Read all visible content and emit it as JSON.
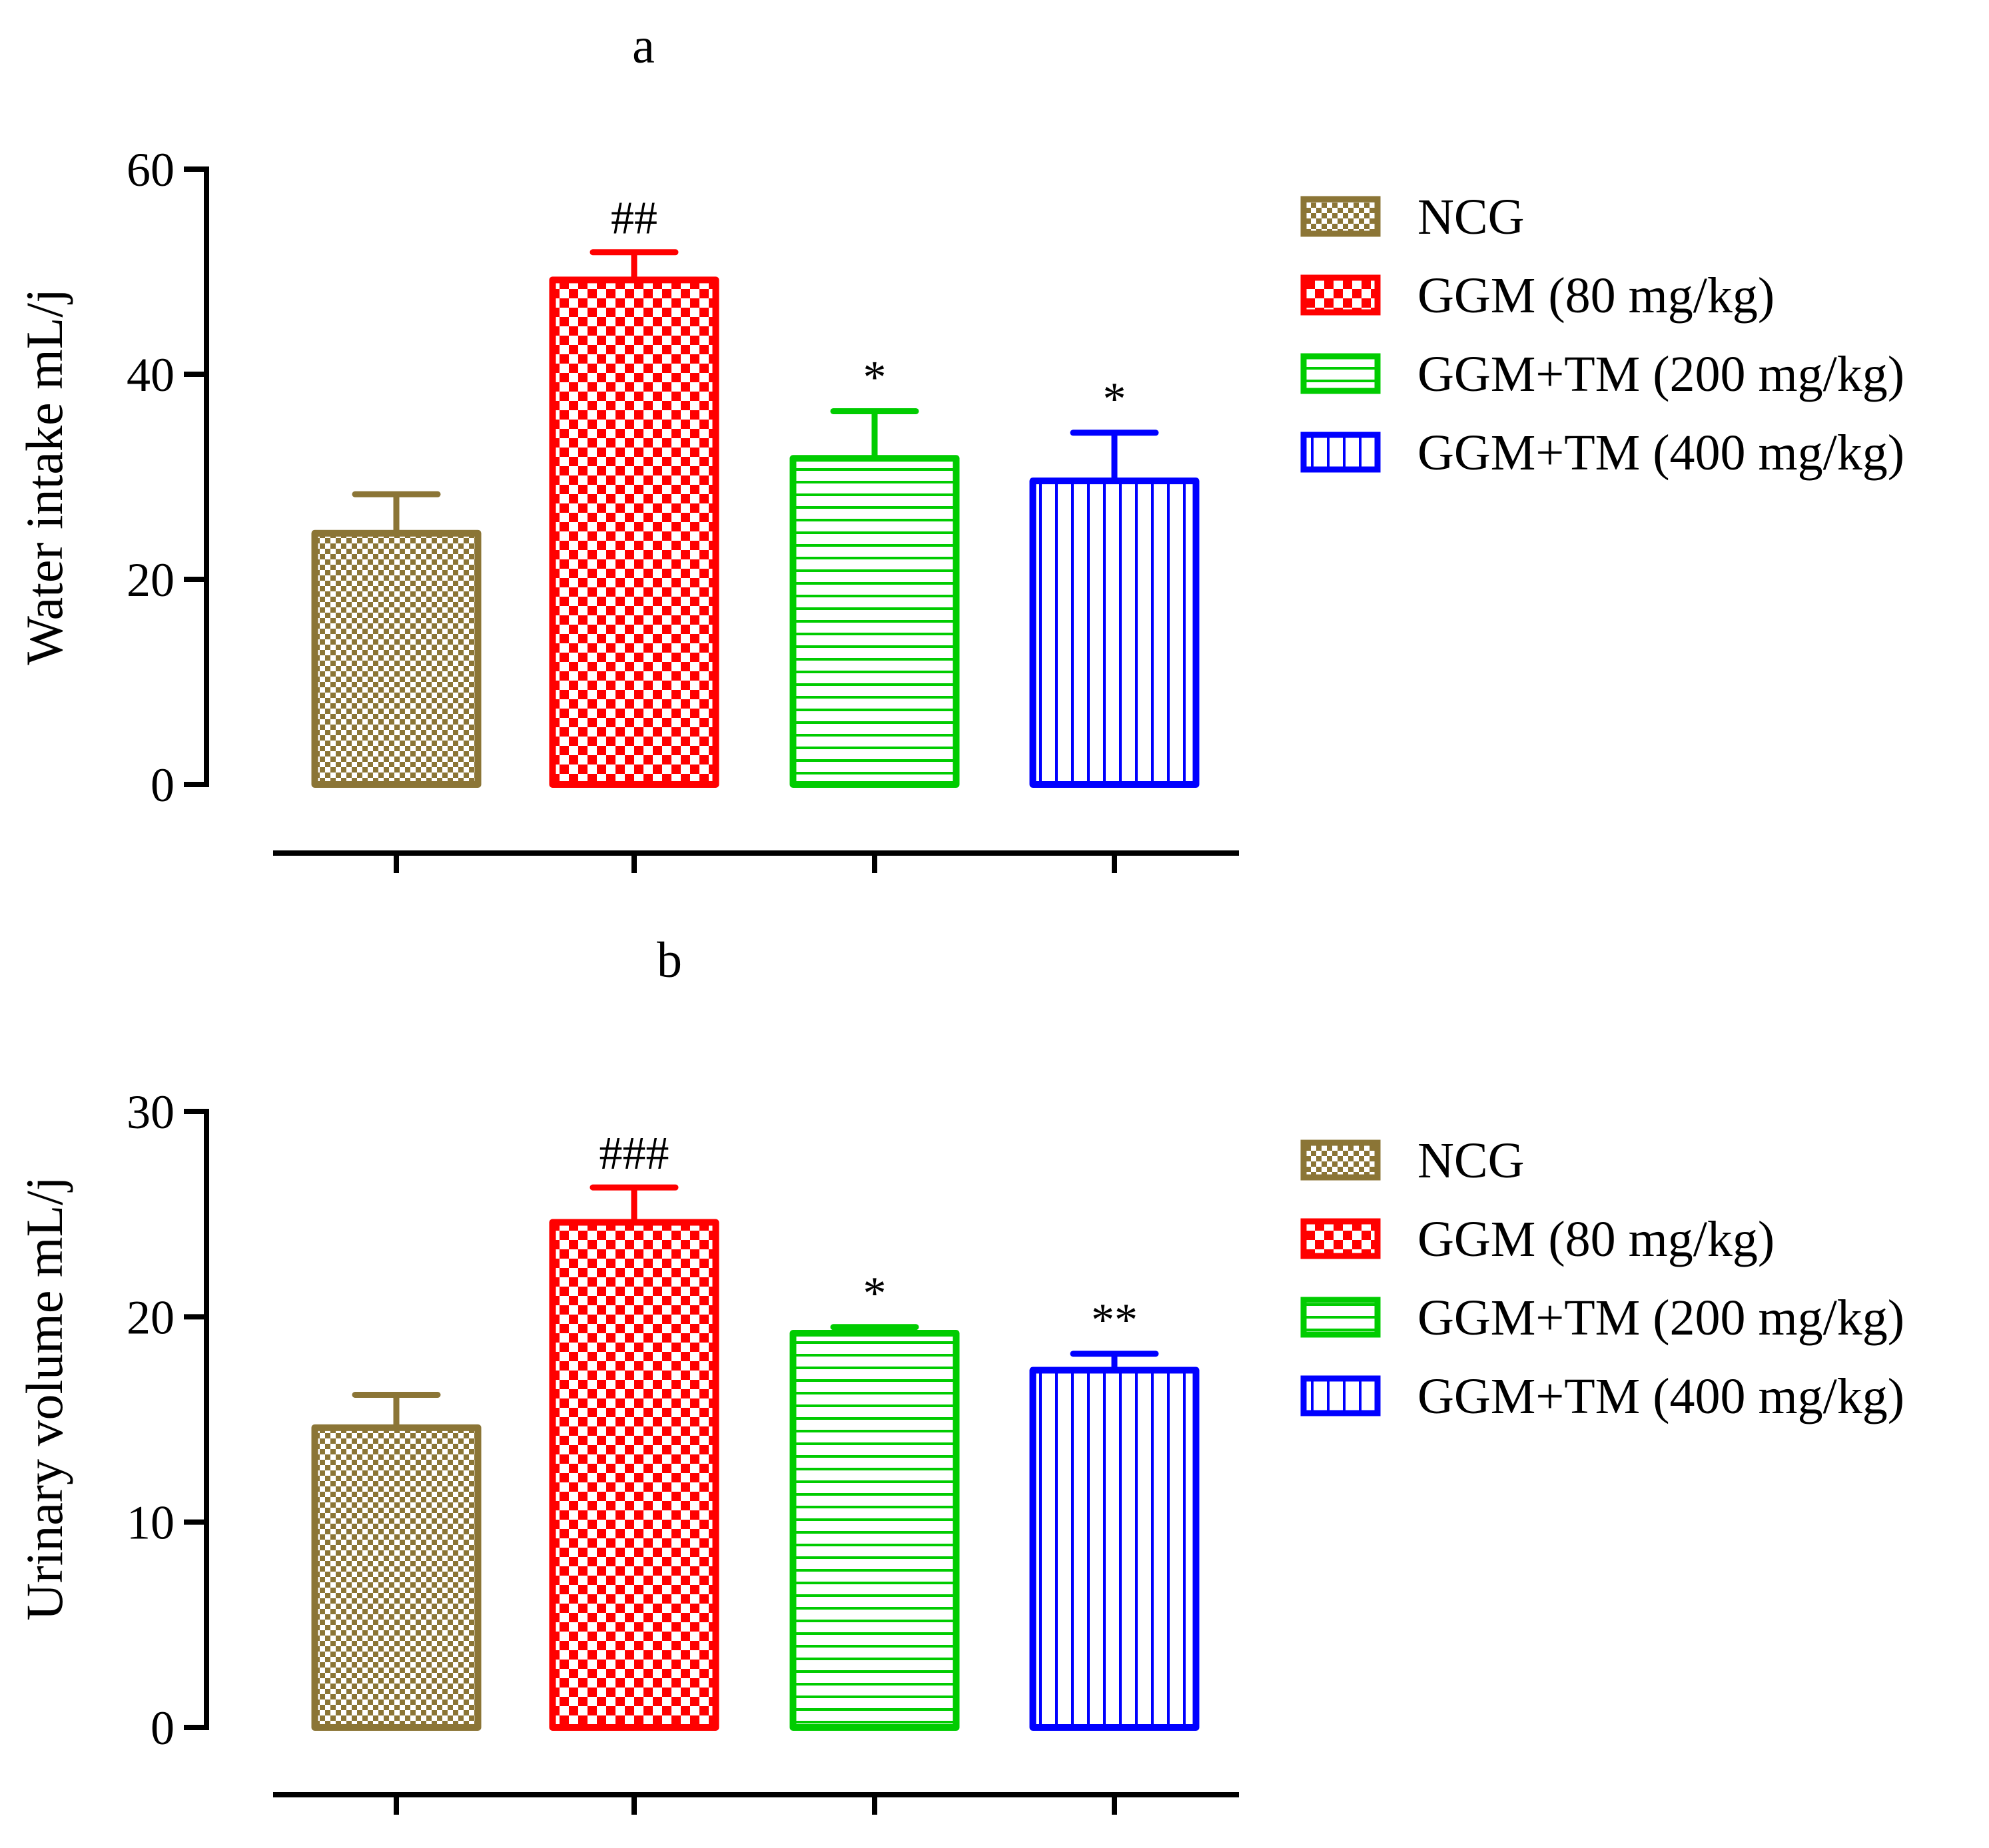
{
  "chart_data": [
    {
      "type": "bar",
      "panel": "a",
      "title": "a",
      "xlabel": "",
      "ylabel": "Water intake mL/j",
      "ylim": [
        0,
        60
      ],
      "yticks": [
        0,
        20,
        40,
        60
      ],
      "categories": [
        "NCG",
        "GGM (80 mg/kg)",
        "GGM+TM (200 mg/kg)",
        "GGM+TM (400 mg/kg)"
      ],
      "values": [
        24.5,
        49.2,
        31.8,
        29.6
      ],
      "errors": [
        3.8,
        2.7,
        4.6,
        4.7
      ],
      "annotations": [
        "",
        "##",
        "*",
        "*"
      ],
      "colors": [
        "#8B7536",
        "#FF0000",
        "#00CC00",
        "#0000FF"
      ],
      "patterns": [
        "checker-fine",
        "checker-large",
        "horizontal-lines",
        "vertical-lines"
      ],
      "legend": [
        "NCG",
        "GGM (80 mg/kg)",
        "GGM+TM (200 mg/kg)",
        "GGM+TM (400 mg/kg)"
      ]
    },
    {
      "type": "bar",
      "panel": "b",
      "title": "b",
      "xlabel": "",
      "ylabel": "Urinary volume mL/j",
      "ylim": [
        0,
        30
      ],
      "yticks": [
        0,
        10,
        20,
        30
      ],
      "categories": [
        "NCG",
        "GGM (80 mg/kg)",
        "GGM+TM (200 mg/kg)",
        "GGM+TM (400 mg/kg)"
      ],
      "values": [
        14.6,
        24.6,
        19.2,
        17.4
      ],
      "errors": [
        1.6,
        1.7,
        0.3,
        0.8
      ],
      "annotations": [
        "",
        "###",
        "*",
        "**"
      ],
      "colors": [
        "#8B7536",
        "#FF0000",
        "#00CC00",
        "#0000FF"
      ],
      "patterns": [
        "checker-fine",
        "checker-large",
        "horizontal-lines",
        "vertical-lines"
      ],
      "legend": [
        "NCG",
        "GGM (80 mg/kg)",
        "GGM+TM (200 mg/kg)",
        "GGM+TM (400 mg/kg)"
      ]
    }
  ]
}
